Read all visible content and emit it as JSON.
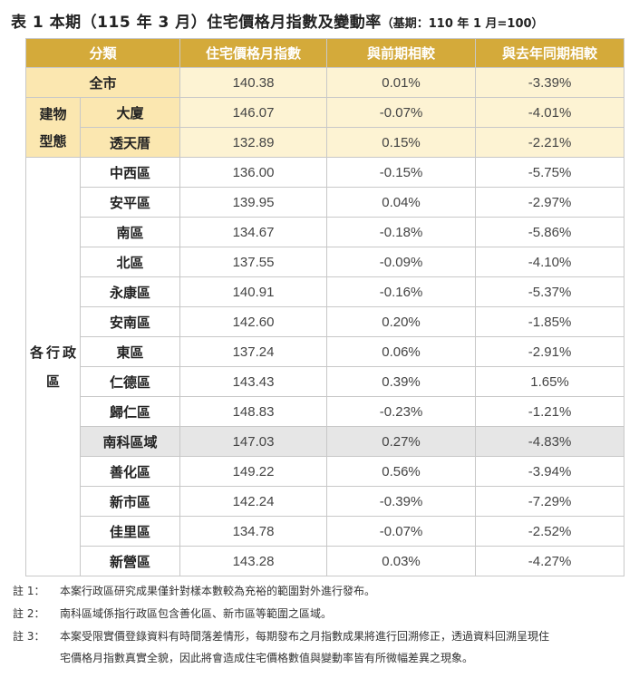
{
  "title": {
    "main": "表 1 本期（115 年 3 月）住宅價格月指數及變動率",
    "base": "（基期：110 年 1 月=100）"
  },
  "headers": [
    "分類",
    "住宅價格月指數",
    "與前期相較",
    "與去年同期相較"
  ],
  "city": {
    "name": "全市",
    "index": "140.38",
    "mom": "0.01%",
    "yoy": "-3.39%"
  },
  "building_group": {
    "label_line1": "建物",
    "label_line2": "型態",
    "rows": [
      {
        "name": "大廈",
        "index": "146.07",
        "mom": "-0.07%",
        "yoy": "-4.01%"
      },
      {
        "name": "透天厝",
        "index": "132.89",
        "mom": "0.15%",
        "yoy": "-2.21%"
      }
    ]
  },
  "district_group": {
    "label_chars": [
      "各",
      "行",
      "政",
      "區"
    ],
    "rows": [
      {
        "name": "中西區",
        "index": "136.00",
        "mom": "-0.15%",
        "yoy": "-5.75%"
      },
      {
        "name": "安平區",
        "index": "139.95",
        "mom": "0.04%",
        "yoy": "-2.97%"
      },
      {
        "name": "南區",
        "index": "134.67",
        "mom": "-0.18%",
        "yoy": "-5.86%"
      },
      {
        "name": "北區",
        "index": "137.55",
        "mom": "-0.09%",
        "yoy": "-4.10%"
      },
      {
        "name": "永康區",
        "index": "140.91",
        "mom": "-0.16%",
        "yoy": "-5.37%"
      },
      {
        "name": "安南區",
        "index": "142.60",
        "mom": "0.20%",
        "yoy": "-1.85%"
      },
      {
        "name": "東區",
        "index": "137.24",
        "mom": "0.06%",
        "yoy": "-2.91%"
      },
      {
        "name": "仁德區",
        "index": "143.43",
        "mom": "0.39%",
        "yoy": "1.65%"
      },
      {
        "name": "歸仁區",
        "index": "148.83",
        "mom": "-0.23%",
        "yoy": "-1.21%"
      },
      {
        "name": "南科區域",
        "index": "147.03",
        "mom": "0.27%",
        "yoy": "-4.83%",
        "highlight": true
      },
      {
        "name": "善化區",
        "index": "149.22",
        "mom": "0.56%",
        "yoy": "-3.94%"
      },
      {
        "name": "新市區",
        "index": "142.24",
        "mom": "-0.39%",
        "yoy": "-7.29%"
      },
      {
        "name": "佳里區",
        "index": "134.78",
        "mom": "-0.07%",
        "yoy": "-2.52%"
      },
      {
        "name": "新營區",
        "index": "143.28",
        "mom": "0.03%",
        "yoy": "-4.27%"
      }
    ]
  },
  "notes": [
    {
      "tag": "註 1：",
      "text": "本案行政區研究成果僅針對樣本數較為充裕的範圍對外進行發布。"
    },
    {
      "tag": "註 2：",
      "text": "南科區域係指行政區包含善化區、新市區等範圍之區域。"
    },
    {
      "tag": "註 3：",
      "text": "本案受限實價登錄資料有時間落差情形，每期發布之月指數成果將進行回溯修正，透過資料回溯呈現住",
      "cont": "宅價格月指數真實全貌，因此將會造成住宅價格數值與變動率皆有所微幅差異之現象。"
    }
  ]
}
